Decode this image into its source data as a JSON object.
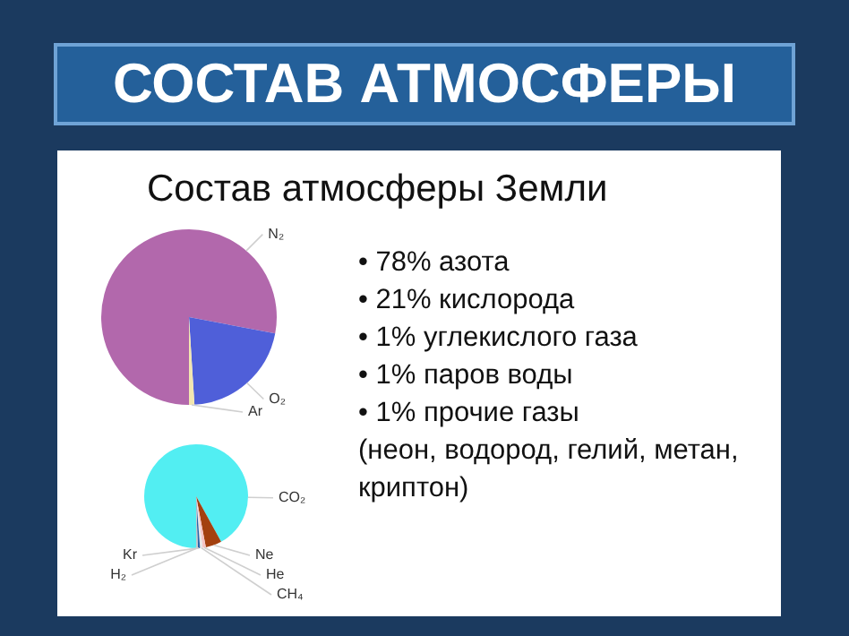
{
  "chart_data": [
    {
      "type": "pie",
      "title": "СОСТАВ АТМОСФЕРЫ",
      "subtitle": "Состав атмосферы Земли",
      "categories": [
        "N₂",
        "O₂",
        "Ar"
      ],
      "values": [
        78,
        21,
        1
      ],
      "colors": [
        "#b268ac",
        "#4f5fd9",
        "#f2e6b0"
      ],
      "legend": false,
      "annotations": [
        "• 78% азота",
        "• 21% кислорода",
        "• 1% углекислого газа",
        "• 1% паров воды",
        "• 1% прочие газы",
        "(неон, водород, гелий, метан, криптон)"
      ]
    },
    {
      "type": "pie",
      "categories": [
        "CO₂",
        "Ne",
        "He",
        "CH₄",
        "Kr",
        "H₂"
      ],
      "values": [
        92,
        5,
        1,
        0.8,
        0.7,
        0.5
      ],
      "colors": [
        "#52eef2",
        "#a3400f",
        "#f6c4c4",
        "#e6e6e6",
        "#2b63a8",
        "#c8c8c8"
      ],
      "legend": false
    }
  ]
}
